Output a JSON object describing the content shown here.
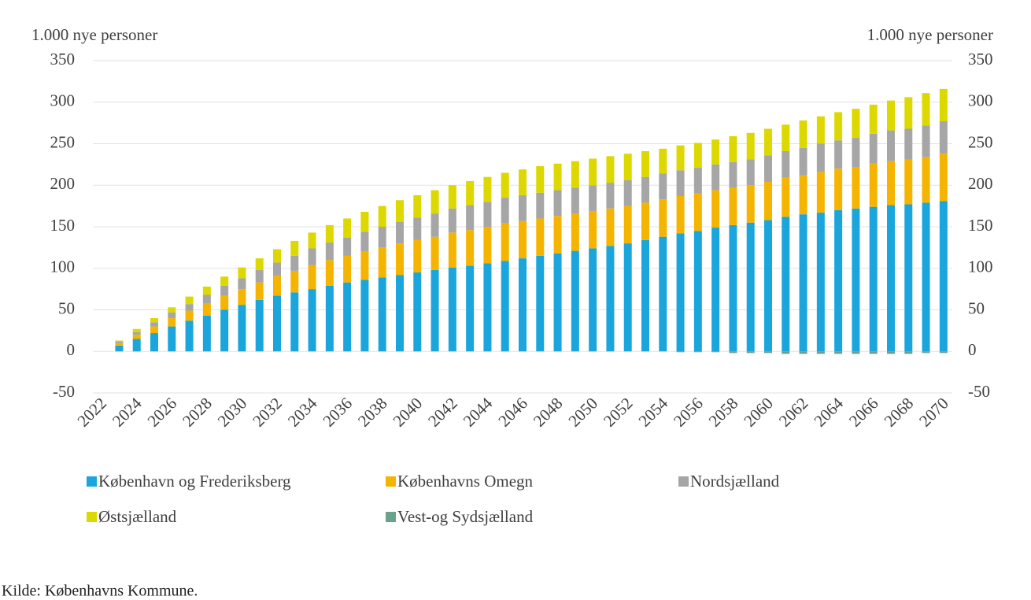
{
  "chart_data": {
    "type": "stacked_bar",
    "y_label": "1.000 nye personer",
    "y2_label": "1.000 nye personer",
    "source": "Kilde: Københavns Kommune.",
    "categories": [
      "2022",
      null,
      "2024",
      null,
      "2026",
      null,
      "2028",
      null,
      "2030",
      null,
      "2032",
      null,
      "2034",
      null,
      "2036",
      null,
      "2038",
      null,
      "2040",
      null,
      "2042",
      null,
      "2044",
      null,
      "2046",
      null,
      "2048",
      null,
      "2050",
      null,
      "2052",
      null,
      "2054",
      null,
      "2056",
      null,
      "2058",
      null,
      "2060",
      null,
      "2062",
      null,
      "2064",
      null,
      "2066",
      null,
      "2068",
      null,
      "2070"
    ],
    "series": [
      {
        "name": "København og Frederiksberg",
        "color": "#1aa6dc",
        "values": [
          0,
          7,
          15,
          22,
          30,
          37,
          43,
          50,
          56,
          62,
          67,
          71,
          75,
          79,
          83,
          86,
          89,
          92,
          95,
          98,
          101,
          103,
          106,
          109,
          112,
          115,
          118,
          121,
          124,
          127,
          130,
          134,
          138,
          142,
          145,
          149,
          152,
          155,
          158,
          162,
          165,
          167,
          170,
          172,
          174,
          176,
          177,
          179,
          181
        ]
      },
      {
        "name": "Københavns Omegn",
        "color": "#f5b400",
        "values": [
          0,
          3,
          5,
          8,
          10,
          12,
          15,
          17,
          19,
          21,
          24,
          26,
          29,
          31,
          32,
          34,
          36,
          38,
          39,
          40,
          42,
          43,
          44,
          45,
          45,
          45,
          45,
          45,
          45,
          45,
          45,
          45,
          45,
          45,
          45,
          45,
          45,
          45,
          46,
          47,
          47,
          49,
          50,
          50,
          52,
          53,
          54,
          55,
          57
        ]
      },
      {
        "name": "Nordsjælland",
        "color": "#a6a6a6",
        "values": [
          0,
          2,
          3,
          5,
          7,
          8,
          10,
          12,
          13,
          15,
          16,
          18,
          20,
          21,
          22,
          24,
          25,
          26,
          27,
          28,
          29,
          30,
          30,
          31,
          31,
          31,
          31,
          31,
          31,
          31,
          31,
          31,
          31,
          31,
          31,
          31,
          31,
          31,
          32,
          32,
          33,
          34,
          34,
          35,
          36,
          37,
          37,
          38,
          39
        ]
      },
      {
        "name": "Østsjælland",
        "color": "#dcd800",
        "values": [
          0,
          1,
          4,
          5,
          6,
          9,
          10,
          11,
          13,
          14,
          16,
          18,
          19,
          21,
          23,
          24,
          25,
          26,
          27,
          28,
          28,
          29,
          30,
          30,
          31,
          32,
          32,
          32,
          32,
          32,
          32,
          31,
          30,
          30,
          30,
          30,
          31,
          32,
          32,
          32,
          33,
          33,
          34,
          35,
          35,
          36,
          38,
          39,
          39
        ]
      },
      {
        "name": "Vest-og Sydsjælland",
        "color": "#6aa38c",
        "values": [
          0,
          0,
          0,
          0,
          0,
          0,
          0,
          0,
          0,
          0,
          0,
          0,
          0,
          0,
          0,
          0,
          0,
          0,
          0,
          0,
          0,
          0,
          0,
          0,
          0,
          0,
          0,
          0,
          0,
          0,
          0,
          0,
          0,
          -1,
          -1,
          -1,
          -2,
          -2,
          -2,
          -3,
          -3,
          -3,
          -3,
          -3,
          -3,
          -3,
          -3,
          -2,
          -2
        ]
      }
    ],
    "ylim": [
      -50,
      350
    ],
    "yticks": [
      -50,
      0,
      50,
      100,
      150,
      200,
      250,
      300,
      350
    ],
    "y2lim": [
      -50,
      350
    ],
    "y2ticks": [
      -50,
      0,
      50,
      100,
      150,
      200,
      250,
      300,
      350
    ],
    "grid": true
  }
}
